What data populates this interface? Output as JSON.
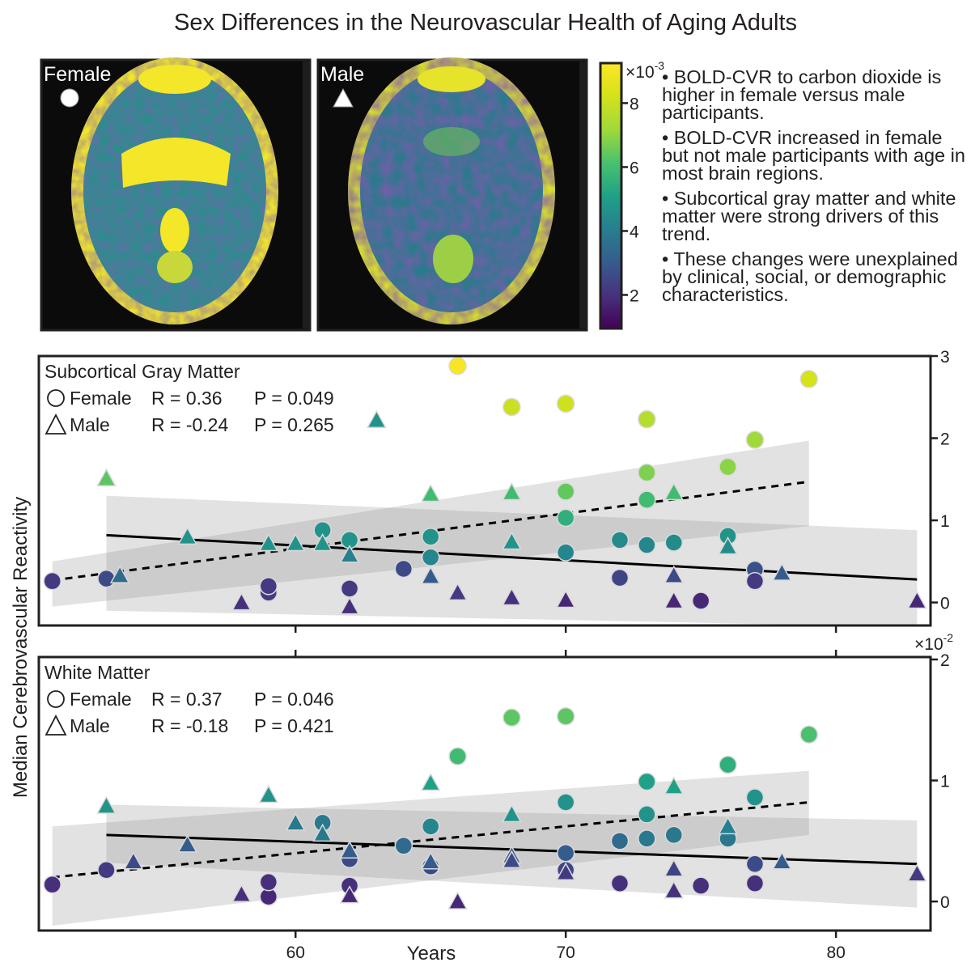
{
  "title": "Sex Differences in the Neurovascular Health of Aging Adults",
  "brain_panels": [
    {
      "label": "Female",
      "marker": "circle"
    },
    {
      "label": "Male",
      "marker": "triangle"
    }
  ],
  "colorbar": {
    "colormap": "viridis",
    "multiplier": "×10",
    "exponent": "-3",
    "ticks": [
      "8",
      "6",
      "4",
      "2"
    ],
    "tick_values": [
      8,
      6,
      4,
      2
    ],
    "range": [
      1,
      9.2
    ]
  },
  "bullets": [
    "• BOLD-CVR to carbon dioxide is higher in female versus male participants.",
    "• BOLD-CVR increased in female but not male participants with age in most brain regions.",
    "• Subcortical gray matter and white matter were strong drivers of this trend.",
    "• These changes were unexplained by clinical, social, or demographic characteristics."
  ],
  "y_label": "Median Cerebrovascular Reactivity",
  "x_label": "Years",
  "chart_data": [
    {
      "type": "scatter",
      "title": "Subcortical Gray Matter",
      "xlabel": "Years",
      "ylabel": "Median Cerebrovascular Reactivity",
      "xlim": [
        50.5,
        83.5
      ],
      "ylim": [
        -0.28,
        3.0
      ],
      "multiplier": "",
      "exponent": "",
      "y_ticks": [
        "0",
        "1",
        "2",
        "3"
      ],
      "y_tick_values": [
        0,
        1,
        2,
        3
      ],
      "x_ticks": [
        "60",
        "70",
        "80"
      ],
      "x_tick_values": [
        60,
        70,
        80
      ],
      "x_tick_labels_shown": false,
      "stats": [
        {
          "sex": "Female",
          "r": "R =  0.36",
          "p": "P = 0.049"
        },
        {
          "sex": "Male",
          "r": "R = -0.24",
          "p": "P = 0.265"
        }
      ],
      "fits": [
        {
          "sex": "Female",
          "style": "dashed",
          "x": [
            51,
            79
          ],
          "y": [
            0.27,
            1.47
          ],
          "ci_lo": [
            -0.05,
            0.93
          ],
          "ci_hi": [
            0.5,
            1.97
          ]
        },
        {
          "sex": "Male",
          "style": "solid",
          "x": [
            53,
            83
          ],
          "y": [
            0.82,
            0.28
          ],
          "ci_lo": [
            -0.1,
            -0.3
          ],
          "ci_hi": [
            1.3,
            0.88
          ]
        }
      ],
      "female": [
        [
          51,
          0.26,
          0.15
        ],
        [
          53,
          0.29,
          0.2
        ],
        [
          59,
          0.12,
          0.15
        ],
        [
          59,
          0.2,
          0.15
        ],
        [
          61,
          0.88,
          0.45
        ],
        [
          62,
          0.76,
          0.45
        ],
        [
          62,
          0.17,
          0.15
        ],
        [
          64,
          0.41,
          0.2
        ],
        [
          65,
          0.8,
          0.45
        ],
        [
          65,
          0.55,
          0.4
        ],
        [
          66,
          2.88,
          0.98
        ],
        [
          68,
          2.38,
          0.85
        ],
        [
          70,
          2.42,
          0.86
        ],
        [
          70,
          1.35,
          0.66
        ],
        [
          70,
          1.03,
          0.55
        ],
        [
          70,
          0.61,
          0.4
        ],
        [
          72,
          0.76,
          0.42
        ],
        [
          72,
          0.3,
          0.18
        ],
        [
          73,
          2.23,
          0.8
        ],
        [
          73,
          1.58,
          0.7
        ],
        [
          73,
          1.25,
          0.6
        ],
        [
          73,
          0.7,
          0.4
        ],
        [
          74,
          0.73,
          0.42
        ],
        [
          75,
          0.02,
          0.1
        ],
        [
          76,
          1.65,
          0.72
        ],
        [
          76,
          0.81,
          0.45
        ],
        [
          77,
          1.98,
          0.75
        ],
        [
          77,
          0.4,
          0.22
        ],
        [
          77,
          0.26,
          0.15
        ],
        [
          79,
          2.72,
          0.88
        ]
      ],
      "male": [
        [
          53,
          1.51,
          0.65
        ],
        [
          53.5,
          0.33,
          0.3
        ],
        [
          56,
          0.8,
          0.45
        ],
        [
          58,
          0.0,
          0.12
        ],
        [
          59,
          0.72,
          0.45
        ],
        [
          60,
          0.72,
          0.45
        ],
        [
          61,
          0.72,
          0.45
        ],
        [
          62,
          0.58,
          0.38
        ],
        [
          62,
          -0.05,
          0.12
        ],
        [
          63,
          2.22,
          0.45
        ],
        [
          65,
          1.32,
          0.6
        ],
        [
          65,
          0.32,
          0.25
        ],
        [
          66,
          0.12,
          0.15
        ],
        [
          68,
          1.34,
          0.6
        ],
        [
          68,
          0.74,
          0.45
        ],
        [
          68,
          0.06,
          0.12
        ],
        [
          70,
          0.03,
          0.1
        ],
        [
          74,
          1.34,
          0.6
        ],
        [
          74,
          0.33,
          0.2
        ],
        [
          74,
          0.02,
          0.1
        ],
        [
          76,
          0.68,
          0.42
        ],
        [
          78,
          0.36,
          0.25
        ],
        [
          83,
          0.02,
          0.1
        ]
      ]
    },
    {
      "type": "scatter",
      "title": "White Matter",
      "xlabel": "Years",
      "ylabel": "Median Cerebrovascular Reactivity",
      "xlim": [
        50.5,
        83.5
      ],
      "ylim": [
        -0.24,
        2.02
      ],
      "multiplier": "×10",
      "exponent": "-2",
      "y_ticks": [
        "0",
        "1",
        "2"
      ],
      "y_tick_values": [
        0,
        1,
        2
      ],
      "x_ticks": [
        "60",
        "70",
        "80"
      ],
      "x_tick_values": [
        60,
        70,
        80
      ],
      "x_tick_labels_shown": true,
      "stats": [
        {
          "sex": "Female",
          "r": "R =  0.37",
          "p": "P = 0.046"
        },
        {
          "sex": "Male",
          "r": "R = -0.18",
          "p": "P = 0.421"
        }
      ],
      "fits": [
        {
          "sex": "Female",
          "style": "dashed",
          "x": [
            51,
            79
          ],
          "y": [
            0.2,
            0.82
          ],
          "ci_lo": [
            -0.2,
            0.55
          ],
          "ci_hi": [
            0.62,
            1.08
          ]
        },
        {
          "sex": "Male",
          "style": "solid",
          "x": [
            53,
            83
          ],
          "y": [
            0.55,
            0.31
          ],
          "ci_lo": [
            0.32,
            -0.05
          ],
          "ci_hi": [
            0.8,
            0.67
          ]
        }
      ],
      "female": [
        [
          51,
          0.14,
          0.12
        ],
        [
          53,
          0.26,
          0.15
        ],
        [
          59,
          0.04,
          0.1
        ],
        [
          59,
          0.16,
          0.12
        ],
        [
          61,
          0.65,
          0.35
        ],
        [
          62,
          0.35,
          0.2
        ],
        [
          62,
          0.13,
          0.12
        ],
        [
          64,
          0.46,
          0.3
        ],
        [
          65,
          0.62,
          0.4
        ],
        [
          65,
          0.29,
          0.2
        ],
        [
          66,
          1.2,
          0.6
        ],
        [
          68,
          1.52,
          0.65
        ],
        [
          70,
          1.53,
          0.65
        ],
        [
          70,
          0.82,
          0.45
        ],
        [
          70,
          0.4,
          0.25
        ],
        [
          70,
          0.26,
          0.18
        ],
        [
          72,
          0.5,
          0.3
        ],
        [
          72,
          0.15,
          0.12
        ],
        [
          73,
          0.99,
          0.5
        ],
        [
          73,
          0.72,
          0.45
        ],
        [
          73,
          0.52,
          0.35
        ],
        [
          74,
          0.55,
          0.35
        ],
        [
          75,
          0.13,
          0.12
        ],
        [
          76,
          1.13,
          0.55
        ],
        [
          76,
          0.52,
          0.35
        ],
        [
          77,
          0.86,
          0.45
        ],
        [
          77,
          0.31,
          0.2
        ],
        [
          77,
          0.15,
          0.12
        ],
        [
          79,
          1.38,
          0.62
        ]
      ],
      "male": [
        [
          53,
          0.79,
          0.45
        ],
        [
          54,
          0.33,
          0.2
        ],
        [
          56,
          0.47,
          0.25
        ],
        [
          58,
          0.06,
          0.12
        ],
        [
          59,
          0.88,
          0.45
        ],
        [
          60,
          0.65,
          0.35
        ],
        [
          61,
          0.56,
          0.35
        ],
        [
          62,
          0.42,
          0.25
        ],
        [
          62,
          0.05,
          0.1
        ],
        [
          65,
          0.98,
          0.5
        ],
        [
          65,
          0.33,
          0.25
        ],
        [
          66,
          0.0,
          0.1
        ],
        [
          68,
          0.72,
          0.45
        ],
        [
          68,
          0.38,
          0.25
        ],
        [
          68,
          0.34,
          0.2
        ],
        [
          70,
          0.24,
          0.15
        ],
        [
          74,
          0.95,
          0.5
        ],
        [
          74,
          0.27,
          0.18
        ],
        [
          74,
          0.09,
          0.12
        ],
        [
          76,
          0.62,
          0.38
        ],
        [
          78,
          0.33,
          0.25
        ],
        [
          83,
          0.23,
          0.15
        ]
      ]
    }
  ]
}
